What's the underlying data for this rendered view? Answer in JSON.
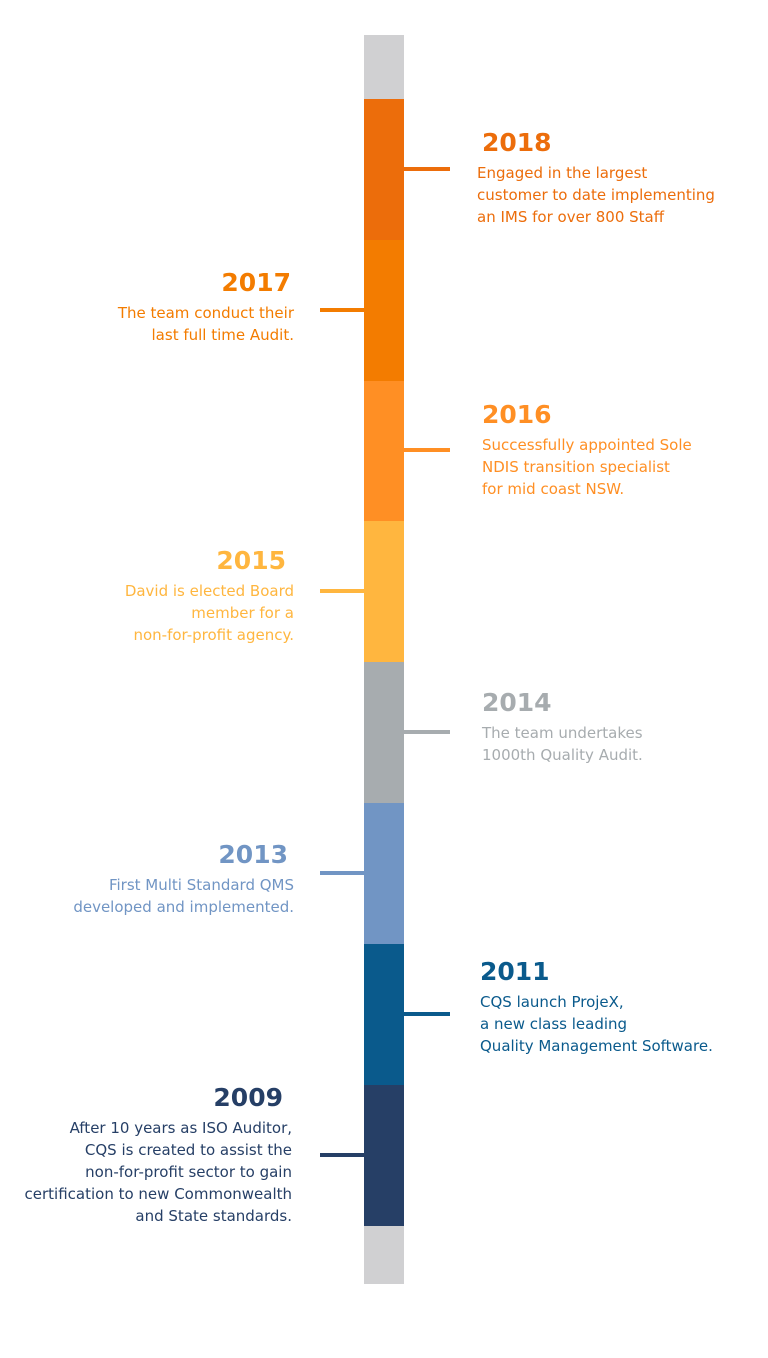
{
  "colors": {
    "cap": "#d0d0d2",
    "e2018": "#ec6d0b",
    "e2017": "#f37c00",
    "e2016": "#ff8f24",
    "e2015": "#ffb63f",
    "e2014": "#a7acaf",
    "e2013": "#7195c4",
    "e2011": "#0a5a8c",
    "e2009": "#263f66"
  },
  "events": [
    {
      "year": "2018",
      "text": "Engaged in the largest\ncustomer to date implementing\nan IMS for over 800 Staff"
    },
    {
      "year": "2017",
      "text": "The team conduct their\nlast full time Audit."
    },
    {
      "year": "2016",
      "text": "Successfully appointed Sole\nNDIS transition specialist\nfor mid coast NSW."
    },
    {
      "year": "2015",
      "text": "David is elected Board\nmember for a\nnon-for-profit agency."
    },
    {
      "year": "2014",
      "text": "The team undertakes\n1000th Quality Audit."
    },
    {
      "year": "2013",
      "text": "First Multi Standard QMS\ndeveloped and implemented."
    },
    {
      "year": "2011",
      "text": "CQS launch ProjeX,\na new class leading\nQuality Management Software."
    },
    {
      "year": "2009",
      "text": "After 10 years as ISO Auditor,\nCQS is created to assist the\nnon-for-profit sector to gain\ncertification to new Commonwealth\nand State standards."
    }
  ]
}
